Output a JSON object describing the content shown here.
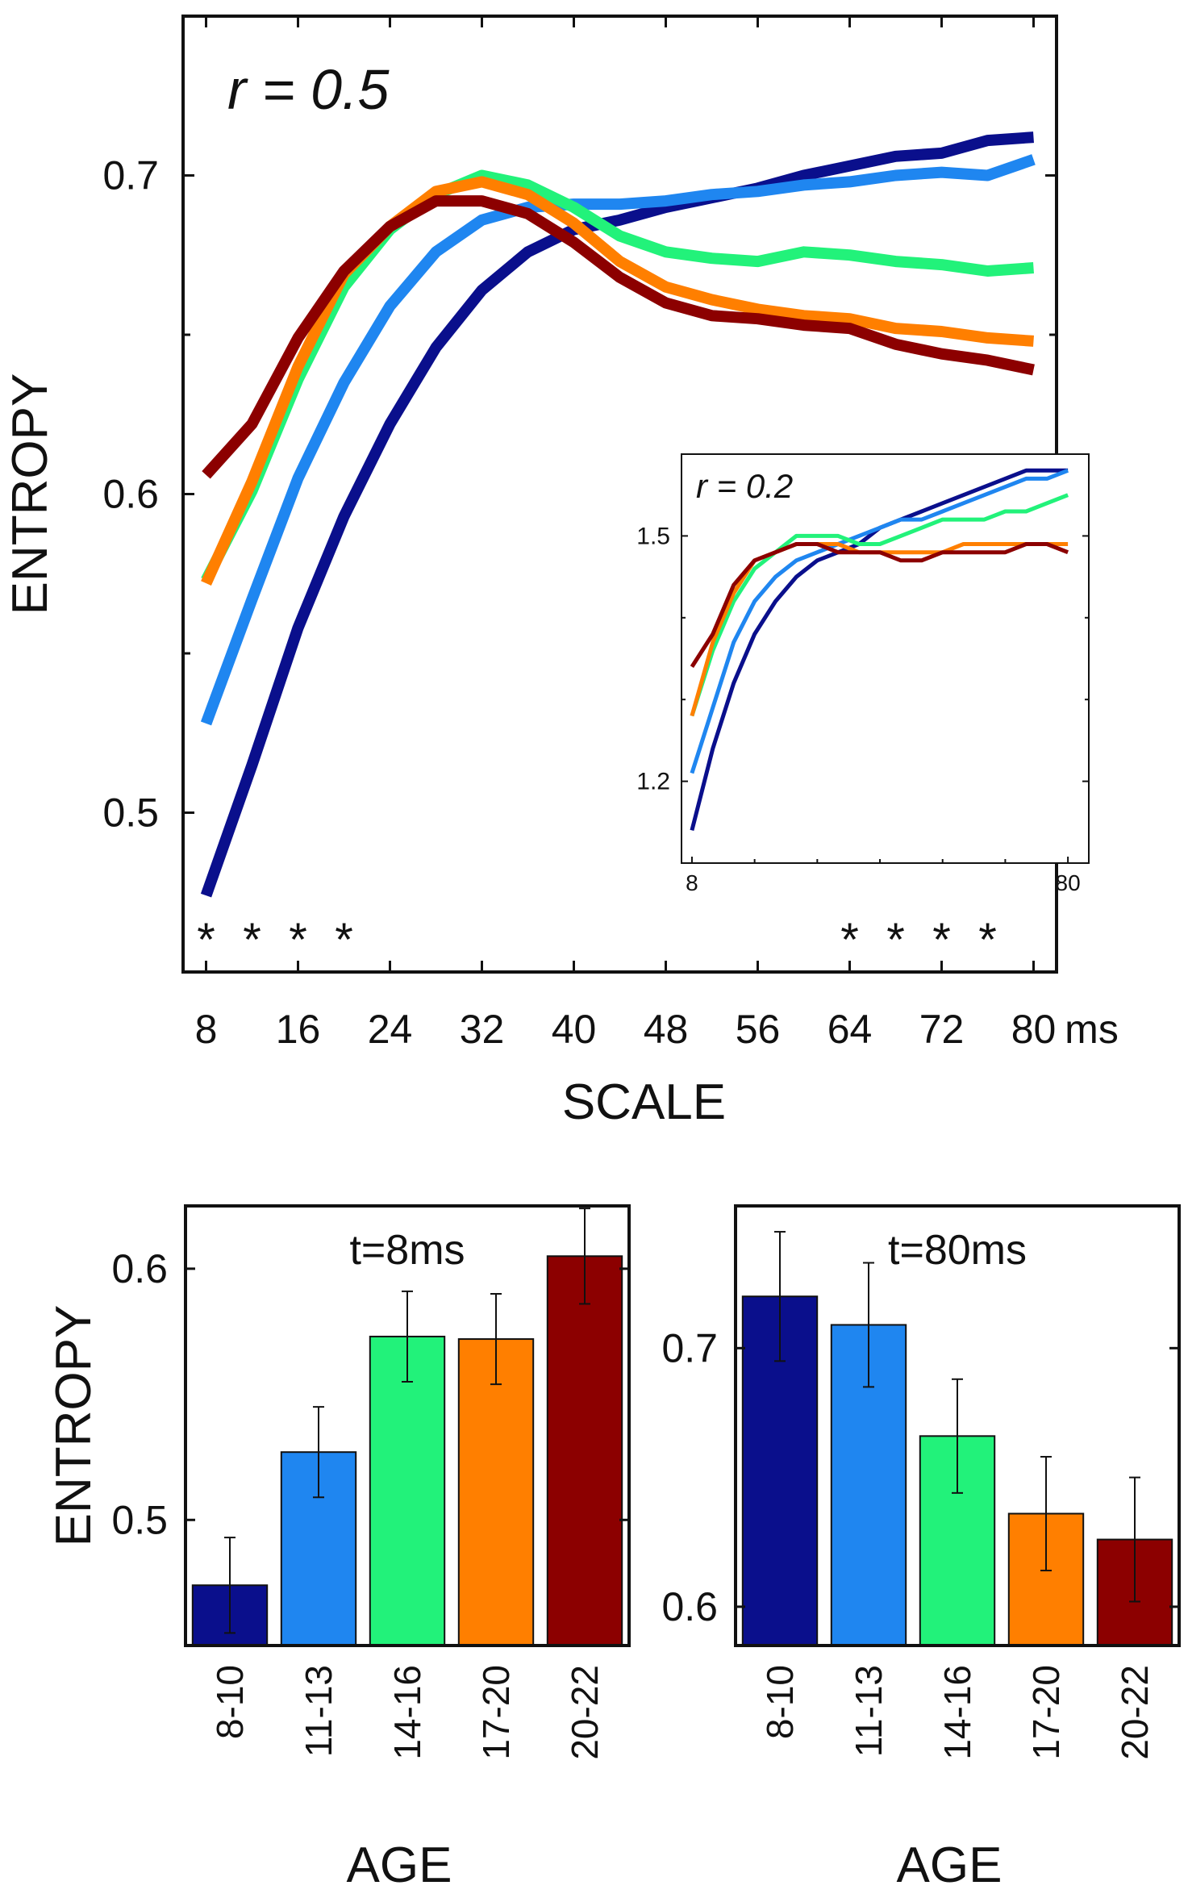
{
  "colors": {
    "age_8_10": "#0a0f8c",
    "age_11_13": "#1f86f0",
    "age_14_16": "#22f27a",
    "age_17_20": "#ff7f00",
    "age_20_22": "#8c0000"
  },
  "chart_data": [
    {
      "id": "main",
      "type": "line",
      "title": "r = 0.5",
      "xlabel": "SCALE",
      "x_unit": "ms",
      "ylabel": "ENTROPY",
      "xlim": [
        6,
        82
      ],
      "ylim": [
        0.45,
        0.75
      ],
      "xticks": [
        8,
        16,
        24,
        32,
        40,
        48,
        56,
        64,
        72,
        80
      ],
      "yticks": [
        0.5,
        0.6,
        0.7
      ],
      "significance_marker": "*",
      "significant_scales": [
        8,
        12,
        16,
        20,
        64,
        68,
        72,
        76
      ],
      "x": [
        8,
        12,
        16,
        20,
        24,
        28,
        32,
        36,
        40,
        44,
        48,
        52,
        56,
        60,
        64,
        68,
        72,
        76,
        80
      ],
      "series": [
        {
          "name": "8-10",
          "color_key": "age_8_10",
          "values": [
            0.474,
            0.515,
            0.558,
            0.593,
            0.622,
            0.646,
            0.664,
            0.676,
            0.683,
            0.686,
            0.69,
            0.693,
            0.696,
            0.7,
            0.703,
            0.706,
            0.707,
            0.711,
            0.712
          ]
        },
        {
          "name": "11-13",
          "color_key": "age_11_13",
          "values": [
            0.528,
            0.567,
            0.605,
            0.635,
            0.659,
            0.676,
            0.686,
            0.69,
            0.691,
            0.691,
            0.692,
            0.694,
            0.695,
            0.697,
            0.698,
            0.7,
            0.701,
            0.7,
            0.705
          ]
        },
        {
          "name": "14-16",
          "color_key": "age_14_16",
          "values": [
            0.573,
            0.601,
            0.636,
            0.665,
            0.683,
            0.694,
            0.7,
            0.697,
            0.69,
            0.681,
            0.676,
            0.674,
            0.673,
            0.676,
            0.675,
            0.673,
            0.672,
            0.67,
            0.671
          ]
        },
        {
          "name": "17-20",
          "color_key": "age_17_20",
          "values": [
            0.572,
            0.604,
            0.64,
            0.669,
            0.684,
            0.695,
            0.698,
            0.694,
            0.685,
            0.673,
            0.665,
            0.661,
            0.658,
            0.656,
            0.655,
            0.652,
            0.651,
            0.649,
            0.648
          ]
        },
        {
          "name": "20-22",
          "color_key": "age_20_22",
          "values": [
            0.606,
            0.622,
            0.649,
            0.67,
            0.684,
            0.692,
            0.692,
            0.688,
            0.679,
            0.668,
            0.66,
            0.656,
            0.655,
            0.653,
            0.652,
            0.647,
            0.644,
            0.642,
            0.639
          ]
        }
      ]
    },
    {
      "id": "inset",
      "type": "line",
      "title": "r = 0.2",
      "xlim": [
        6,
        84
      ],
      "ylim": [
        1.1,
        1.6
      ],
      "xticks": [
        8,
        80
      ],
      "yticks": [
        1.2,
        1.5
      ],
      "x": [
        8,
        12,
        16,
        20,
        24,
        28,
        32,
        36,
        40,
        44,
        48,
        52,
        56,
        60,
        64,
        68,
        72,
        76,
        80
      ],
      "series": [
        {
          "name": "8-10",
          "color_key": "age_8_10",
          "values": [
            1.14,
            1.24,
            1.32,
            1.38,
            1.42,
            1.45,
            1.47,
            1.48,
            1.49,
            1.51,
            1.52,
            1.53,
            1.54,
            1.55,
            1.56,
            1.57,
            1.58,
            1.58,
            1.58
          ]
        },
        {
          "name": "11-13",
          "color_key": "age_11_13",
          "values": [
            1.21,
            1.29,
            1.37,
            1.42,
            1.45,
            1.47,
            1.48,
            1.49,
            1.5,
            1.51,
            1.52,
            1.52,
            1.53,
            1.54,
            1.55,
            1.56,
            1.57,
            1.57,
            1.58
          ]
        },
        {
          "name": "14-16",
          "color_key": "age_14_16",
          "values": [
            1.28,
            1.36,
            1.42,
            1.46,
            1.48,
            1.5,
            1.5,
            1.5,
            1.49,
            1.49,
            1.5,
            1.51,
            1.52,
            1.52,
            1.52,
            1.53,
            1.53,
            1.54,
            1.55
          ]
        },
        {
          "name": "17-20",
          "color_key": "age_17_20",
          "values": [
            1.28,
            1.37,
            1.43,
            1.47,
            1.48,
            1.49,
            1.49,
            1.49,
            1.48,
            1.48,
            1.48,
            1.48,
            1.48,
            1.49,
            1.49,
            1.49,
            1.49,
            1.49,
            1.49
          ]
        },
        {
          "name": "20-22",
          "color_key": "age_20_22",
          "values": [
            1.34,
            1.38,
            1.44,
            1.47,
            1.48,
            1.49,
            1.49,
            1.48,
            1.48,
            1.48,
            1.47,
            1.47,
            1.48,
            1.48,
            1.48,
            1.48,
            1.49,
            1.49,
            1.48
          ]
        }
      ]
    },
    {
      "id": "bars_8ms",
      "type": "bar",
      "title": "t=8ms",
      "xlabel": "AGE",
      "ylabel": "ENTROPY",
      "ylim": [
        0.45,
        0.625
      ],
      "yticks": [
        0.5,
        0.6
      ],
      "categories": [
        "8-10",
        "11-13",
        "14-16",
        "17-20",
        "20-22"
      ],
      "color_keys": [
        "age_8_10",
        "age_11_13",
        "age_14_16",
        "age_17_20",
        "age_20_22"
      ],
      "values": [
        0.474,
        0.527,
        0.573,
        0.572,
        0.605
      ],
      "errors": [
        0.019,
        0.018,
        0.018,
        0.018,
        0.019
      ]
    },
    {
      "id": "bars_80ms",
      "type": "bar",
      "title": "t=80ms",
      "xlabel": "AGE",
      "ylim": [
        0.585,
        0.755
      ],
      "yticks": [
        0.6,
        0.7
      ],
      "categories": [
        "8-10",
        "11-13",
        "14-16",
        "17-20",
        "20-22"
      ],
      "color_keys": [
        "age_8_10",
        "age_11_13",
        "age_14_16",
        "age_17_20",
        "age_20_22"
      ],
      "values": [
        0.72,
        0.709,
        0.666,
        0.636,
        0.626
      ],
      "errors": [
        0.025,
        0.024,
        0.022,
        0.022,
        0.024
      ]
    }
  ]
}
